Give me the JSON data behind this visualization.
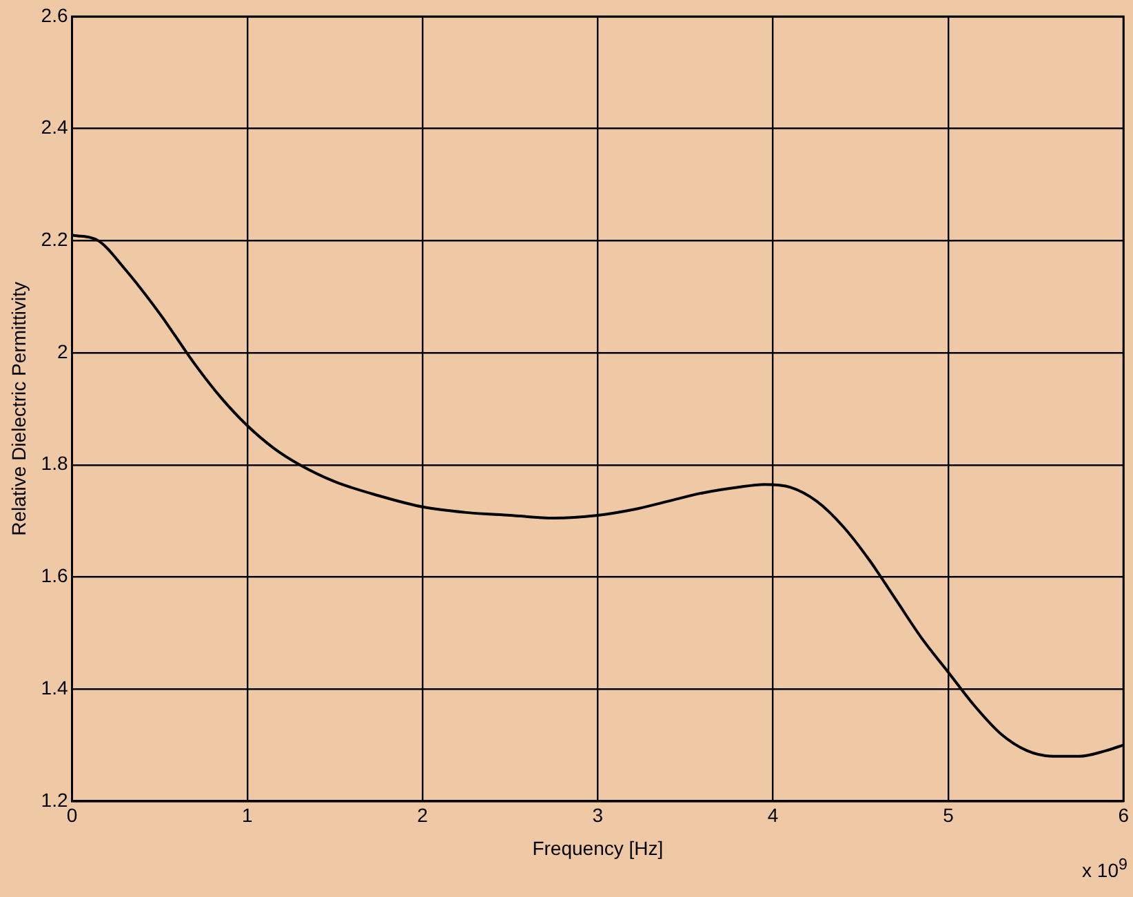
{
  "chart_data": {
    "type": "line",
    "xlabel": "Frequency [Hz]",
    "ylabel": "Relative Dielectric Permittivity",
    "x": [
      0,
      0.15,
      0.3,
      0.5,
      0.7,
      0.85,
      1,
      1.15,
      1.3,
      1.5,
      1.75,
      2,
      2.25,
      2.5,
      2.75,
      3,
      3.2,
      3.4,
      3.6,
      3.8,
      3.95,
      4.1,
      4.25,
      4.4,
      4.55,
      4.7,
      4.85,
      5,
      5.15,
      5.3,
      5.45,
      5.6,
      5.75,
      5.9,
      6
    ],
    "series": [
      {
        "color": "#000000",
        "values": [
          2.21,
          2.2,
          2.15,
          2.07,
          1.98,
          1.92,
          1.87,
          1.83,
          1.8,
          1.77,
          1.745,
          1.725,
          1.715,
          1.71,
          1.705,
          1.71,
          1.72,
          1.735,
          1.75,
          1.76,
          1.765,
          1.76,
          1.735,
          1.69,
          1.63,
          1.56,
          1.49,
          1.43,
          1.37,
          1.32,
          1.29,
          1.28,
          1.28,
          1.29,
          1.3
        ]
      }
    ],
    "xlim": [
      0,
      6
    ],
    "ylim": [
      1.2,
      2.6
    ],
    "xticks": [
      0,
      1,
      2,
      3,
      4,
      5,
      6
    ],
    "yticks": [
      1.2,
      1.4,
      1.6,
      1.8,
      2,
      2.2,
      2.4,
      2.6
    ],
    "grid": true,
    "legend": false,
    "marker": "none",
    "line_style": "solid",
    "annotations": [
      "x 10$^{9}$"
    ]
  }
}
